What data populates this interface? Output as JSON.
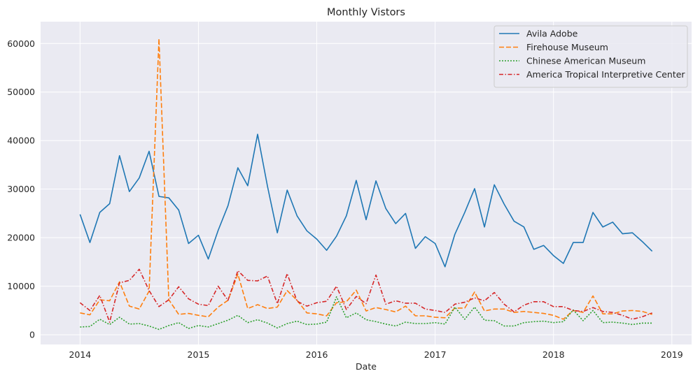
{
  "chart_data": {
    "type": "line",
    "title": "Monthly Vistors",
    "xlabel": "Date",
    "ylabel": "",
    "x_start": "2014-01",
    "x_ticks": [
      "2014",
      "2015",
      "2016",
      "2017",
      "2018",
      "2019"
    ],
    "xlim": [
      "2013-09",
      "2019-03"
    ],
    "y_ticks": [
      0,
      10000,
      20000,
      30000,
      40000,
      50000,
      60000
    ],
    "y_tick_labels": [
      "0",
      "10000",
      "20000",
      "30000",
      "40000",
      "50000",
      "60000"
    ],
    "ylim": [
      -2000,
      64500
    ],
    "grid": true,
    "legend_position": "top-right",
    "background": "#eaeaf2",
    "series": [
      {
        "name": "Avila Adobe",
        "color": "#1f77b4",
        "dash": "solid",
        "values": [
          24800,
          19000,
          25200,
          27000,
          36900,
          29500,
          32300,
          37800,
          28500,
          28200,
          25700,
          18800,
          20500,
          15600,
          21500,
          26600,
          34400,
          30700,
          41300,
          30600,
          21000,
          29800,
          24500,
          21400,
          19700,
          17400,
          20300,
          24500,
          31800,
          23700,
          31700,
          26000,
          22900,
          25000,
          17800,
          20200,
          18800,
          14000,
          20700,
          25200,
          30100,
          22200,
          30900,
          26900,
          23400,
          22200,
          17600,
          18400,
          16300,
          14700,
          19000,
          19000,
          25200,
          22200,
          23200,
          20800,
          21000,
          19200,
          17200
        ]
      },
      {
        "name": "Firehouse Museum",
        "color": "#ff7f0e",
        "dash": "dashed",
        "values": [
          4500,
          4100,
          7200,
          7000,
          10900,
          5900,
          5300,
          9000,
          61000,
          7200,
          4200,
          4400,
          4000,
          3700,
          5700,
          7100,
          12500,
          5400,
          6200,
          5400,
          5700,
          9100,
          7100,
          4500,
          4300,
          3900,
          6600,
          6800,
          9200,
          4900,
          5600,
          5200,
          4700,
          5900,
          3900,
          3900,
          3600,
          3500,
          5500,
          5500,
          8800,
          4900,
          5300,
          5300,
          4600,
          4800,
          4600,
          4400,
          4000,
          3200,
          5000,
          4600,
          8000,
          4300,
          4300,
          4900,
          5000,
          4800,
          4200
        ]
      },
      {
        "name": "Chinese American Museum",
        "color": "#2ca02c",
        "dash": "dotted",
        "values": [
          1600,
          1700,
          3200,
          2100,
          3600,
          2200,
          2300,
          1800,
          1100,
          1900,
          2500,
          1300,
          1900,
          1600,
          2300,
          3000,
          4000,
          2500,
          3100,
          2400,
          1400,
          2300,
          2800,
          2100,
          2200,
          2600,
          7800,
          3500,
          4500,
          3100,
          2700,
          2200,
          1800,
          2600,
          2300,
          2300,
          2500,
          2200,
          5700,
          3200,
          5700,
          3000,
          2900,
          1800,
          1800,
          2500,
          2700,
          2800,
          2500,
          2700,
          5100,
          2900,
          5000,
          2500,
          2600,
          2400,
          2100,
          2400,
          2400
        ]
      },
      {
        "name": "America Tropical Interpretive Center",
        "color": "#d62728",
        "dash": "dashdot",
        "values": [
          6600,
          5000,
          8100,
          2600,
          10700,
          11200,
          13500,
          9100,
          5800,
          7200,
          9900,
          7400,
          6300,
          6000,
          10000,
          7100,
          13200,
          11200,
          11100,
          12100,
          6400,
          12600,
          6900,
          5900,
          6600,
          6900,
          10000,
          5200,
          7900,
          6400,
          12300,
          6300,
          7000,
          6500,
          6500,
          5300,
          5000,
          4600,
          6300,
          6700,
          7600,
          7000,
          8700,
          6300,
          4700,
          6100,
          6800,
          6800,
          5800,
          5800,
          5000,
          4800,
          5600,
          4800,
          4600,
          4000,
          3200,
          3700,
          4500
        ]
      }
    ]
  }
}
